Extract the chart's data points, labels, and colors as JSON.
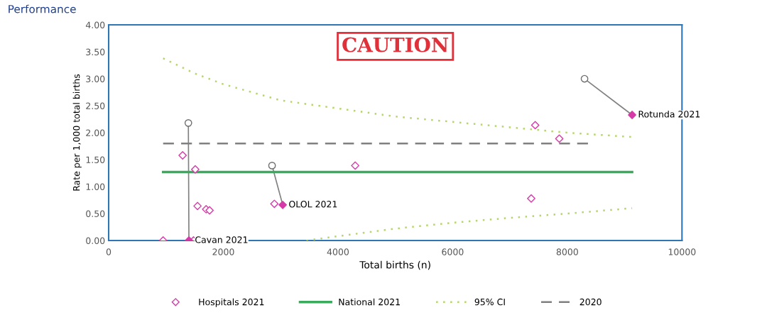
{
  "chart_data": {
    "type": "scatter",
    "title": "Performance",
    "xlabel": "Total births (n)",
    "ylabel": "Rate per 1,000 total births",
    "xlim": [
      0,
      10000
    ],
    "xticks": [
      0,
      2000,
      4000,
      6000,
      8000,
      10000
    ],
    "ylim": [
      0,
      4
    ],
    "yticks": [
      {
        "value": 0,
        "label": "0.00"
      },
      {
        "value": 0.5,
        "label": "0.50"
      },
      {
        "value": 1,
        "label": "1.00"
      },
      {
        "value": 1.5,
        "label": "1.50"
      },
      {
        "value": 2,
        "label": "2.00"
      },
      {
        "value": 2.5,
        "label": "2.50"
      },
      {
        "value": 3,
        "label": "3.00"
      },
      {
        "value": 3.5,
        "label": "3.50"
      },
      {
        "value": 4,
        "label": "4.00"
      }
    ],
    "grid": false,
    "legend": "bottom",
    "series": [
      {
        "type": "line",
        "x": [
          1390,
          1400
        ],
        "values": [
          2.18,
          0
        ],
        "color": "#808080",
        "marker": "none",
        "line_style": "solid"
      },
      {
        "type": "line",
        "x": [
          2850,
          3036
        ],
        "values": [
          1.39,
          0.66
        ],
        "color": "#808080",
        "marker": "none",
        "line_style": "solid"
      },
      {
        "type": "line",
        "x": [
          8300,
          9130
        ],
        "values": [
          3.0,
          2.33
        ],
        "color": "#808080",
        "marker": "none",
        "line_style": "solid"
      },
      {
        "name": "Hospitals 2021",
        "marker": "diamond",
        "color": "#d63aa8",
        "x": [
          950,
          1290,
          1510,
          1550,
          1700,
          1760,
          1480,
          2890,
          4300,
          7370,
          7440,
          7860
        ],
        "values": [
          0,
          1.58,
          1.32,
          0.64,
          0.58,
          0.56,
          0,
          0.68,
          1.39,
          0.78,
          2.14,
          1.89
        ]
      },
      {
        "name": "National 2021",
        "type": "line",
        "marker": "none",
        "line_style": "solid",
        "color": "#3aaa5c",
        "x": [
          950,
          9130
        ],
        "values": [
          1.27,
          1.27
        ]
      },
      {
        "name": "95% CI",
        "type": "line",
        "marker": "none",
        "line_style": "dotted",
        "color": "#b5d66b",
        "x": [
          950,
          1500,
          2000,
          3000,
          4000,
          5000,
          6000,
          7000,
          8000,
          9130
        ],
        "values": [
          3.38,
          3.1,
          2.9,
          2.6,
          2.45,
          2.3,
          2.2,
          2.1,
          2.0,
          1.92
        ]
      },
      {
        "type": "line",
        "marker": "none",
        "line_style": "dotted",
        "color": "#b5d66b",
        "x": [
          3450,
          4000,
          5000,
          6000,
          7000,
          8000,
          9130
        ],
        "values": [
          0,
          0.08,
          0.22,
          0.33,
          0.42,
          0.5,
          0.6
        ]
      },
      {
        "name": "2020",
        "type": "line",
        "marker": "none",
        "line_style": "dashed",
        "color": "#808080",
        "x": [
          950,
          8360
        ],
        "values": [
          1.8,
          1.8
        ]
      },
      {
        "marker": "circle",
        "color": "#707070",
        "x": [
          1390,
          2850,
          8300
        ],
        "values": [
          2.18,
          1.39,
          3.0
        ]
      },
      {
        "marker": "diamond",
        "color": "#d63aa8",
        "colors": [
          "#d63aa8",
          "#d63aa8",
          "#d63aa8"
        ],
        "x": [
          1400,
          3036,
          9130
        ],
        "values": [
          0,
          0.66,
          2.33
        ]
      }
    ],
    "annotations": [
      {
        "text": "Cavan 2021",
        "x": 1400,
        "y": 0
      },
      {
        "text": "OLOL 2021",
        "x": 3036,
        "y": 0.66
      },
      {
        "text": "Rotunda 2021",
        "x": 9130,
        "y": 2.33
      },
      "CAUTION"
    ]
  }
}
